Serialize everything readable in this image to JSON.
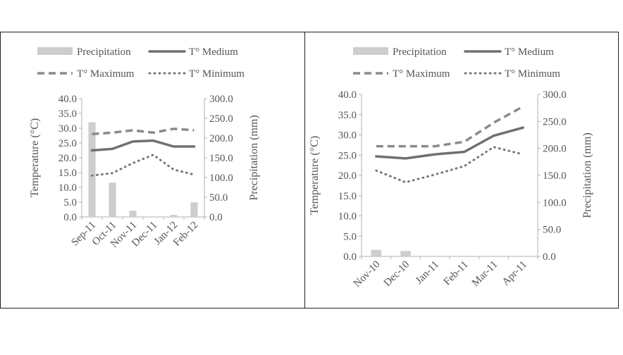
{
  "colors": {
    "bar": "#cdcdcd",
    "medium": "#707070",
    "maximum": "#8a8a8a",
    "minimum": "#777777",
    "axis": "#b0b0b0",
    "text": "#555555"
  },
  "chart_data": [
    {
      "type": "bar+line",
      "categories": [
        "Sep-11",
        "Oct-11",
        "Nov-11",
        "Dec-11",
        "Jan-12",
        "Feb-12"
      ],
      "ylabel": "Temperature (°C)",
      "y2label": "Precipitation (mm)",
      "ylim": [
        0,
        40
      ],
      "y2lim": [
        0,
        300
      ],
      "yticks": [
        "0.0",
        "5.0",
        "10.0",
        "15.0",
        "20.0",
        "25.0",
        "30.0",
        "35.0",
        "40.0"
      ],
      "y2ticks": [
        "0.0",
        "50.0",
        "100.0",
        "150.0",
        "200.0",
        "250.0",
        "300.0"
      ],
      "legend": [
        "Precipitation",
        "T° Medium",
        "T° Maximum",
        "T° Minimum"
      ],
      "legend_position": "top",
      "grid": false,
      "bar_series": {
        "name": "Precipitation",
        "axis": "right",
        "values": [
          240,
          87,
          16,
          0,
          5,
          37
        ]
      },
      "line_series": [
        {
          "name": "T° Medium",
          "style": "solid",
          "values": [
            22.5,
            23.0,
            25.5,
            25.8,
            23.8,
            23.8
          ]
        },
        {
          "name": "T° Maximum",
          "style": "dashed",
          "values": [
            28.0,
            28.5,
            29.3,
            28.5,
            29.8,
            29.3
          ]
        },
        {
          "name": "T° Minimum",
          "style": "dotted",
          "values": [
            14.0,
            14.8,
            18.2,
            21.0,
            16.0,
            14.3
          ]
        }
      ]
    },
    {
      "type": "bar+line",
      "categories": [
        "Nov-10",
        "Dec-10",
        "Jan-11",
        "Feb-11",
        "Mar-11",
        "Apr-11"
      ],
      "ylabel": "Temperature (°C)",
      "y2label": "Precipitation (mm)",
      "ylim": [
        0,
        40
      ],
      "y2lim": [
        0,
        300
      ],
      "yticks": [
        "0.0",
        "5.0",
        "10.0",
        "15.0",
        "20.0",
        "25.0",
        "30.0",
        "35.0",
        "40.0"
      ],
      "y2ticks": [
        "0.0",
        "50.0",
        "100.0",
        "150.0",
        "200.0",
        "250.0",
        "300.0"
      ],
      "legend": [
        "Precipitation",
        "T° Medium",
        "T° Maximum",
        "T° Minimum"
      ],
      "legend_position": "top",
      "grid": false,
      "bar_series": {
        "name": "Precipitation",
        "axis": "right",
        "values": [
          12,
          10,
          0,
          0,
          0,
          0
        ]
      },
      "line_series": [
        {
          "name": "T° Medium",
          "style": "solid",
          "values": [
            24.7,
            24.2,
            25.2,
            25.8,
            29.8,
            31.8
          ]
        },
        {
          "name": "T° Maximum",
          "style": "dashed",
          "values": [
            27.2,
            27.2,
            27.2,
            28.3,
            33.0,
            37.0
          ]
        },
        {
          "name": "T° Minimum",
          "style": "dotted",
          "values": [
            21.2,
            18.3,
            20.2,
            22.3,
            27.0,
            25.2
          ]
        }
      ]
    }
  ]
}
